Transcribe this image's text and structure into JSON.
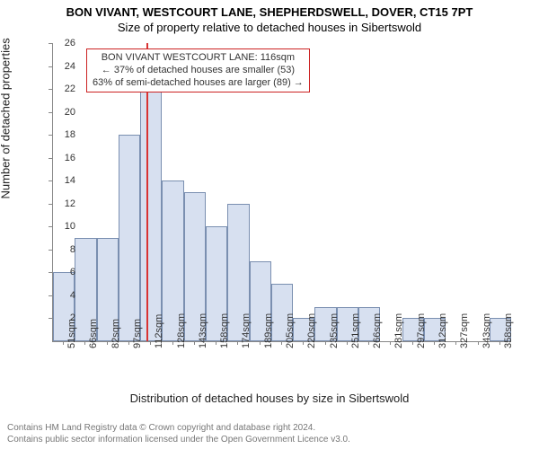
{
  "titles": {
    "main": "BON VIVANT, WESTCOURT LANE, SHEPHERDSWELL, DOVER, CT15 7PT",
    "sub": "Size of property relative to detached houses in Sibertswold"
  },
  "axes": {
    "ylabel": "Number of detached properties",
    "xlabel": "Distribution of detached houses by size in Sibertswold",
    "ylim": [
      0,
      26
    ],
    "ytick_step": 2,
    "ytick_fontsize": 11,
    "xtick_fontsize": 11,
    "label_fontsize": 13
  },
  "chart": {
    "type": "histogram",
    "categories": [
      "51sqm",
      "66sqm",
      "82sqm",
      "97sqm",
      "112sqm",
      "128sqm",
      "143sqm",
      "158sqm",
      "174sqm",
      "189sqm",
      "205sqm",
      "220sqm",
      "235sqm",
      "251sqm",
      "266sqm",
      "281sqm",
      "297sqm",
      "312sqm",
      "327sqm",
      "343sqm",
      "358sqm"
    ],
    "values": [
      6,
      9,
      9,
      18,
      22,
      14,
      13,
      10,
      12,
      7,
      5,
      2,
      3,
      3,
      3,
      0,
      2,
      2,
      0,
      0,
      2
    ],
    "bar_fill": "#d7e0f0",
    "bar_stroke": "#7a8fb0",
    "bar_width_ratio": 1.0,
    "background_color": "#ffffff",
    "ref_line": {
      "category_index": 4,
      "offset_ratio": 0.28,
      "color": "#d93333",
      "width": 2
    }
  },
  "annotation": {
    "line1": "BON VIVANT WESTCOURT LANE: 116sqm",
    "line2_prefix": "← ",
    "line2": "37% of detached houses are smaller (53)",
    "line3": "63% of semi-detached houses are larger (89)",
    "line3_suffix": " →",
    "border_color": "#cc2222",
    "fontsize": 11
  },
  "footer": {
    "line1": "Contains HM Land Registry data © Crown copyright and database right 2024.",
    "line2": "Contains public sector information licensed under the Open Government Licence v3.0."
  }
}
